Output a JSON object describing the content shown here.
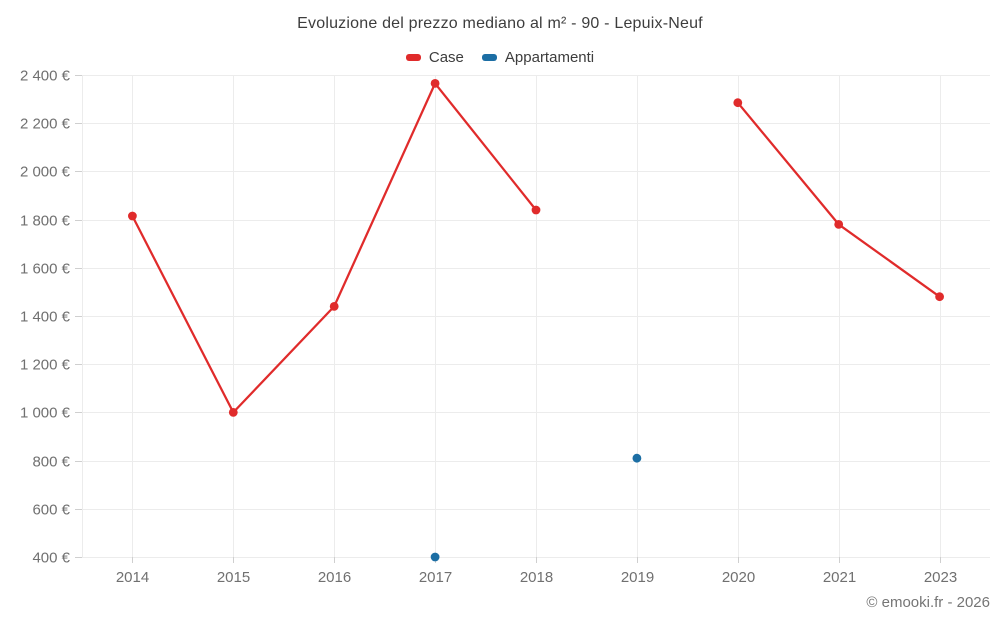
{
  "chart_data": {
    "type": "line",
    "title": "Evoluzione del prezzo mediano al m² - 90 - Lepuix-Neuf",
    "categories": [
      "2014",
      "2015",
      "2016",
      "2017",
      "2018",
      "2019",
      "2020",
      "2021",
      "2023"
    ],
    "series": [
      {
        "name": "Case",
        "color": "#e02b2b",
        "values": [
          1815,
          1000,
          1440,
          2365,
          1840,
          null,
          2285,
          1780,
          1480
        ]
      },
      {
        "name": "Appartamenti",
        "color": "#1c6ea4",
        "values": [
          null,
          null,
          null,
          400,
          null,
          810,
          null,
          null,
          null
        ]
      }
    ],
    "y_axis": {
      "min": 400,
      "max": 2400,
      "step": 200,
      "unit": "€"
    },
    "xlabel": "",
    "ylabel": "",
    "grid": true,
    "legend_position": "top"
  },
  "footer": {
    "text": "© emooki.fr - 2026"
  },
  "colors": {
    "background": "#ffffff",
    "title_text": "#3d3d3d",
    "axis_label": "#707070",
    "gridline": "#ececec",
    "tick": "#cfcfcf",
    "case_red": "#e02b2b",
    "appartamenti_blue": "#1c6ea4"
  }
}
